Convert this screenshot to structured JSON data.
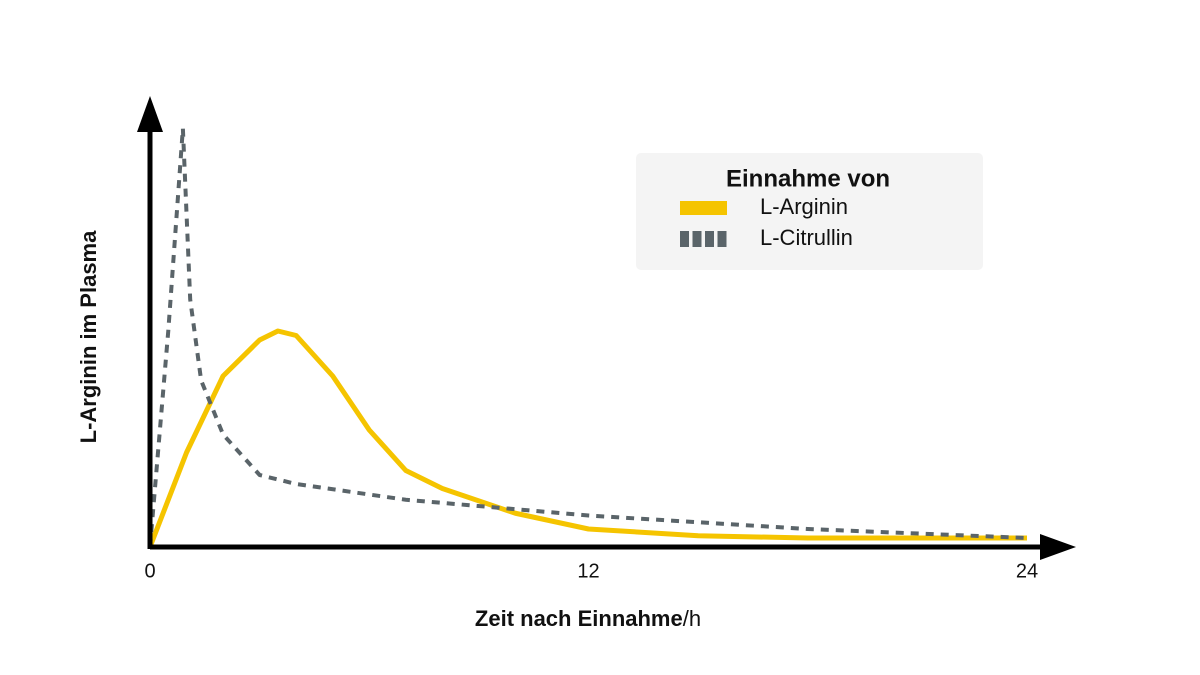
{
  "chart_data": {
    "type": "line",
    "ylabel": "L-Arginin im Plasma",
    "xlabel": "Zeit nach Einnahme",
    "xlabel_unit": "/h",
    "legend_title": "Einnahme von",
    "legend_position": "upper right",
    "xlim": [
      0,
      24
    ],
    "xticks": [
      0,
      12,
      24
    ],
    "ylim": [
      0,
      100
    ],
    "series": [
      {
        "name": "L-Arginin",
        "color": "#f5c400",
        "style": "solid",
        "x": [
          0,
          1,
          2,
          3,
          3.5,
          4,
          5,
          6,
          7,
          8,
          10,
          12,
          15,
          18,
          24
        ],
        "values": [
          0,
          21,
          38,
          46,
          48,
          47,
          38,
          26,
          17,
          13,
          7.5,
          4,
          2.5,
          2,
          2
        ]
      },
      {
        "name": "L-Citrullin",
        "color": "#5a6469",
        "style": "dashed",
        "x": [
          0,
          0.5,
          0.9,
          1.1,
          1.4,
          2,
          3,
          4,
          7,
          12,
          18,
          24
        ],
        "values": [
          0,
          48,
          93,
          55,
          37,
          25,
          16,
          14,
          10.5,
          7,
          4,
          2
        ]
      }
    ]
  }
}
